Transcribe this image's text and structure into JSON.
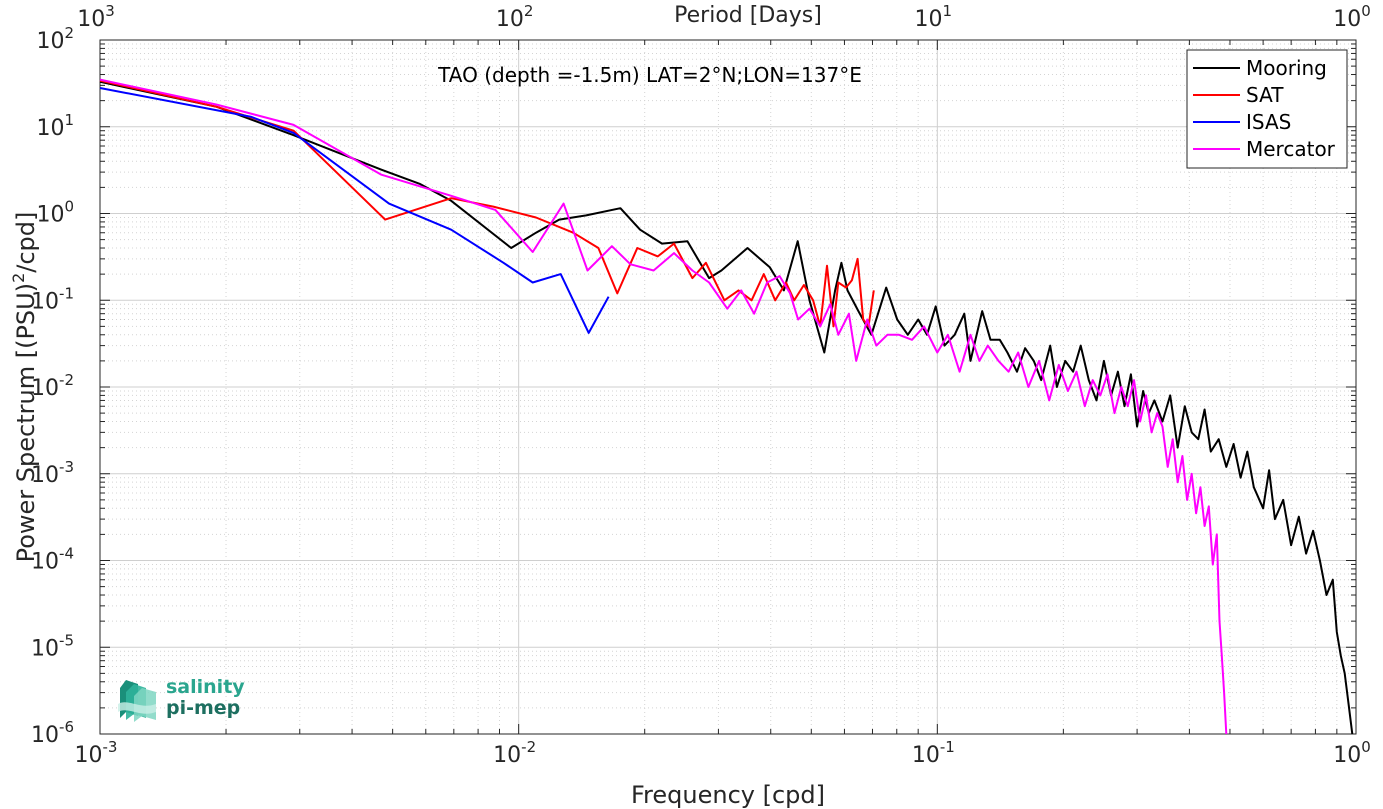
{
  "chart_data": {
    "type": "line",
    "title": "",
    "annotation": "TAO (depth =-1.5m) LAT=2°N;LON=137°E",
    "xlabel": "Frequency [cpd]",
    "ylabel_main": "Power Spectrum [(PSU)",
    "ylabel_sup": "2",
    "ylabel_tail": "/cpd]",
    "top_xlabel": "Period [Days]",
    "xscale": "log",
    "yscale": "log",
    "xlim": [
      0.001,
      1
    ],
    "ylim": [
      1e-06,
      100
    ],
    "grid": true,
    "legend_position": "top-right",
    "x_ticks": [
      {
        "base": "10",
        "exp": "-3",
        "value": 0.001
      },
      {
        "base": "10",
        "exp": "-2",
        "value": 0.01
      },
      {
        "base": "10",
        "exp": "-1",
        "value": 0.1
      },
      {
        "base": "10",
        "exp": "0",
        "value": 1
      }
    ],
    "top_ticks": [
      {
        "base": "10",
        "exp": "3",
        "frequency": 0.001
      },
      {
        "base": "10",
        "exp": "2",
        "frequency": 0.01
      },
      {
        "base": "10",
        "exp": "1",
        "frequency": 0.1
      },
      {
        "base": "10",
        "exp": "0",
        "frequency": 1
      }
    ],
    "y_ticks": [
      {
        "base": "10",
        "exp": "2",
        "value": 100
      },
      {
        "base": "10",
        "exp": "1",
        "value": 10
      },
      {
        "base": "10",
        "exp": "0",
        "value": 1
      },
      {
        "base": "10",
        "exp": "-1",
        "value": 0.1
      },
      {
        "base": "10",
        "exp": "-2",
        "value": 0.01
      },
      {
        "base": "10",
        "exp": "-3",
        "value": 0.001
      },
      {
        "base": "10",
        "exp": "-4",
        "value": 0.0001
      },
      {
        "base": "10",
        "exp": "-5",
        "value": 1e-05
      },
      {
        "base": "10",
        "exp": "-6",
        "value": 1e-06
      }
    ],
    "series": [
      {
        "name": "Mooring",
        "color": "#000000",
        "points": [
          [
            0.001,
            33
          ],
          [
            0.0019,
            17
          ],
          [
            0.0029,
            8
          ],
          [
            0.0047,
            3.2
          ],
          [
            0.0058,
            2.2
          ],
          [
            0.0069,
            1.4
          ],
          [
            0.0096,
            0.4
          ],
          [
            0.011,
            0.6
          ],
          [
            0.0125,
            0.85
          ],
          [
            0.0145,
            0.95
          ],
          [
            0.0175,
            1.15
          ],
          [
            0.0195,
            0.65
          ],
          [
            0.022,
            0.45
          ],
          [
            0.0253,
            0.48
          ],
          [
            0.0285,
            0.18
          ],
          [
            0.0305,
            0.22
          ],
          [
            0.0352,
            0.4
          ],
          [
            0.0398,
            0.24
          ],
          [
            0.043,
            0.13
          ],
          [
            0.0464,
            0.48
          ],
          [
            0.0495,
            0.1
          ],
          [
            0.0537,
            0.025
          ],
          [
            0.057,
            0.13
          ],
          [
            0.059,
            0.27
          ],
          [
            0.061,
            0.13
          ],
          [
            0.0648,
            0.075
          ],
          [
            0.0696,
            0.04
          ],
          [
            0.0755,
            0.14
          ],
          [
            0.0802,
            0.06
          ],
          [
            0.085,
            0.04
          ],
          [
            0.09,
            0.06
          ],
          [
            0.0945,
            0.04
          ],
          [
            0.0991,
            0.085
          ],
          [
            0.104,
            0.03
          ],
          [
            0.11,
            0.04
          ],
          [
            0.116,
            0.07
          ],
          [
            0.12,
            0.02
          ],
          [
            0.128,
            0.075
          ],
          [
            0.134,
            0.035
          ],
          [
            0.141,
            0.035
          ],
          [
            0.147,
            0.025
          ],
          [
            0.155,
            0.015
          ],
          [
            0.162,
            0.028
          ],
          [
            0.17,
            0.02
          ],
          [
            0.177,
            0.012
          ],
          [
            0.186,
            0.03
          ],
          [
            0.193,
            0.01
          ],
          [
            0.202,
            0.02
          ],
          [
            0.211,
            0.015
          ],
          [
            0.22,
            0.03
          ],
          [
            0.23,
            0.012
          ],
          [
            0.24,
            0.007
          ],
          [
            0.25,
            0.02
          ],
          [
            0.26,
            0.008
          ],
          [
            0.27,
            0.015
          ],
          [
            0.28,
            0.006
          ],
          [
            0.29,
            0.014
          ],
          [
            0.3,
            0.0035
          ],
          [
            0.31,
            0.009
          ],
          [
            0.32,
            0.005
          ],
          [
            0.33,
            0.007
          ],
          [
            0.345,
            0.004
          ],
          [
            0.36,
            0.008
          ],
          [
            0.375,
            0.002
          ],
          [
            0.39,
            0.006
          ],
          [
            0.405,
            0.003
          ],
          [
            0.42,
            0.0025
          ],
          [
            0.435,
            0.0055
          ],
          [
            0.45,
            0.0018
          ],
          [
            0.47,
            0.0025
          ],
          [
            0.49,
            0.0012
          ],
          [
            0.51,
            0.0022
          ],
          [
            0.53,
            0.0009
          ],
          [
            0.55,
            0.0018
          ],
          [
            0.57,
            0.0007
          ],
          [
            0.6,
            0.0004
          ],
          [
            0.62,
            0.0011
          ],
          [
            0.64,
            0.0003
          ],
          [
            0.67,
            0.0005
          ],
          [
            0.7,
            0.00015
          ],
          [
            0.73,
            0.00032
          ],
          [
            0.76,
            0.00012
          ],
          [
            0.79,
            0.00022
          ],
          [
            0.82,
            0.0001
          ],
          [
            0.85,
            4e-05
          ],
          [
            0.88,
            6e-05
          ],
          [
            0.9,
            1.5e-05
          ],
          [
            0.92,
            8e-06
          ],
          [
            0.94,
            5e-06
          ],
          [
            0.96,
            2.2e-06
          ],
          [
            0.98,
            1e-06
          ]
        ]
      },
      {
        "name": "SAT",
        "color": "#ff0000",
        "points": [
          [
            0.001,
            34
          ],
          [
            0.0019,
            17
          ],
          [
            0.0029,
            9
          ],
          [
            0.0048,
            0.85
          ],
          [
            0.0069,
            1.5
          ],
          [
            0.0087,
            1.2
          ],
          [
            0.011,
            0.9
          ],
          [
            0.0135,
            0.6
          ],
          [
            0.0155,
            0.4
          ],
          [
            0.0172,
            0.12
          ],
          [
            0.0192,
            0.4
          ],
          [
            0.0215,
            0.32
          ],
          [
            0.0235,
            0.45
          ],
          [
            0.026,
            0.18
          ],
          [
            0.028,
            0.27
          ],
          [
            0.031,
            0.1
          ],
          [
            0.0335,
            0.13
          ],
          [
            0.036,
            0.1
          ],
          [
            0.0385,
            0.2
          ],
          [
            0.041,
            0.1
          ],
          [
            0.0435,
            0.16
          ],
          [
            0.0455,
            0.1
          ],
          [
            0.048,
            0.15
          ],
          [
            0.0505,
            0.1
          ],
          [
            0.0525,
            0.05
          ],
          [
            0.0545,
            0.25
          ],
          [
            0.0565,
            0.05
          ],
          [
            0.058,
            0.16
          ],
          [
            0.0605,
            0.14
          ],
          [
            0.0625,
            0.17
          ],
          [
            0.0645,
            0.3
          ],
          [
            0.0665,
            0.06
          ],
          [
            0.0685,
            0.05
          ],
          [
            0.0705,
            0.13
          ]
        ]
      },
      {
        "name": "ISAS",
        "color": "#0000ff",
        "points": [
          [
            0.001,
            28
          ],
          [
            0.0023,
            13
          ],
          [
            0.0029,
            8.5
          ],
          [
            0.0049,
            1.3
          ],
          [
            0.0069,
            0.65
          ],
          [
            0.0092,
            0.27
          ],
          [
            0.0108,
            0.16
          ],
          [
            0.0126,
            0.2
          ],
          [
            0.0147,
            0.042
          ],
          [
            0.0164,
            0.11
          ]
        ]
      },
      {
        "name": "Mercator",
        "color": "#ff00ff",
        "points": [
          [
            0.001,
            35
          ],
          [
            0.0019,
            18
          ],
          [
            0.0029,
            10.5
          ],
          [
            0.0047,
            2.8
          ],
          [
            0.0069,
            1.6
          ],
          [
            0.0088,
            1.1
          ],
          [
            0.0108,
            0.36
          ],
          [
            0.0128,
            1.3
          ],
          [
            0.0146,
            0.22
          ],
          [
            0.0167,
            0.42
          ],
          [
            0.0185,
            0.26
          ],
          [
            0.021,
            0.22
          ],
          [
            0.0235,
            0.35
          ],
          [
            0.026,
            0.22
          ],
          [
            0.0285,
            0.16
          ],
          [
            0.0315,
            0.08
          ],
          [
            0.034,
            0.13
          ],
          [
            0.0365,
            0.07
          ],
          [
            0.0392,
            0.16
          ],
          [
            0.042,
            0.19
          ],
          [
            0.0445,
            0.12
          ],
          [
            0.0465,
            0.06
          ],
          [
            0.0495,
            0.08
          ],
          [
            0.0525,
            0.05
          ],
          [
            0.0555,
            0.09
          ],
          [
            0.058,
            0.04
          ],
          [
            0.0615,
            0.07
          ],
          [
            0.064,
            0.02
          ],
          [
            0.068,
            0.06
          ],
          [
            0.0715,
            0.03
          ],
          [
            0.076,
            0.04
          ],
          [
            0.081,
            0.04
          ],
          [
            0.087,
            0.035
          ],
          [
            0.093,
            0.05
          ],
          [
            0.1,
            0.025
          ],
          [
            0.106,
            0.04
          ],
          [
            0.113,
            0.015
          ],
          [
            0.12,
            0.04
          ],
          [
            0.126,
            0.02
          ],
          [
            0.132,
            0.03
          ],
          [
            0.14,
            0.02
          ],
          [
            0.148,
            0.015
          ],
          [
            0.156,
            0.025
          ],
          [
            0.165,
            0.01
          ],
          [
            0.175,
            0.02
          ],
          [
            0.185,
            0.007
          ],
          [
            0.195,
            0.018
          ],
          [
            0.205,
            0.009
          ],
          [
            0.215,
            0.015
          ],
          [
            0.225,
            0.006
          ],
          [
            0.235,
            0.012
          ],
          [
            0.245,
            0.008
          ],
          [
            0.255,
            0.014
          ],
          [
            0.265,
            0.005
          ],
          [
            0.275,
            0.01
          ],
          [
            0.285,
            0.006
          ],
          [
            0.295,
            0.012
          ],
          [
            0.305,
            0.004
          ],
          [
            0.315,
            0.008
          ],
          [
            0.325,
            0.003
          ],
          [
            0.335,
            0.005
          ],
          [
            0.345,
            0.0035
          ],
          [
            0.355,
            0.0012
          ],
          [
            0.365,
            0.0025
          ],
          [
            0.375,
            0.0008
          ],
          [
            0.385,
            0.0016
          ],
          [
            0.395,
            0.0005
          ],
          [
            0.405,
            0.001
          ],
          [
            0.415,
            0.00035
          ],
          [
            0.425,
            0.0007
          ],
          [
            0.435,
            0.00025
          ],
          [
            0.445,
            0.00042
          ],
          [
            0.455,
            9e-05
          ],
          [
            0.465,
            0.0002
          ],
          [
            0.472,
            2e-05
          ],
          [
            0.478,
            8e-06
          ],
          [
            0.484,
            3e-06
          ],
          [
            0.49,
            1e-06
          ]
        ]
      }
    ]
  },
  "logo": {
    "line1": "salinity",
    "line2": "pi-mep"
  }
}
